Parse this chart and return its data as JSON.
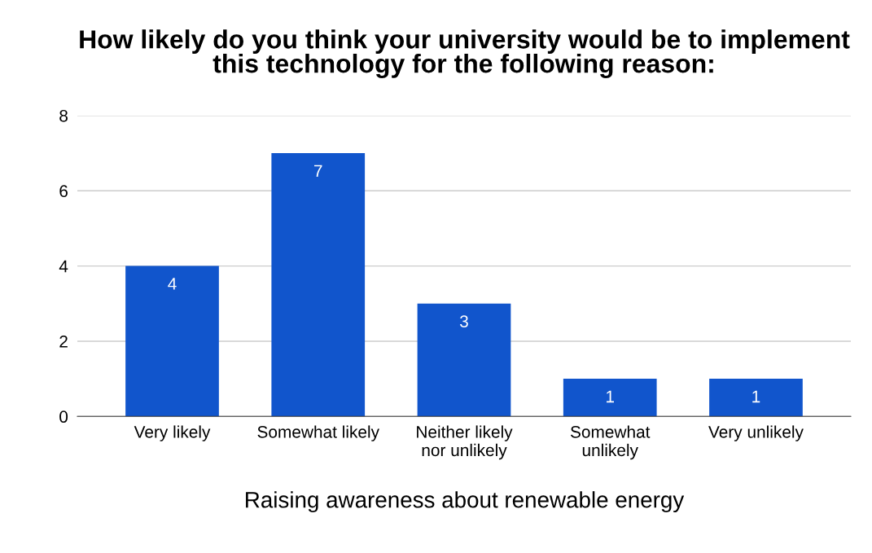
{
  "chart_data": {
    "type": "bar",
    "title": "How likely do you think your university would be to implement\nthis technology for the following reason:",
    "xlabel": "Raising awareness about renewable energy",
    "categories": [
      "Very likely",
      "Somewhat likely",
      "Neither likely\nnor unlikely",
      "Somewhat\nunlikely",
      "Very unlikely"
    ],
    "values": [
      4,
      7,
      3,
      1,
      1
    ],
    "color": "#1155cc",
    "ylim": [
      0,
      8
    ],
    "yticks": [
      0,
      2,
      4,
      6,
      8
    ],
    "grid": "y",
    "data_labels": true,
    "legend": false
  }
}
